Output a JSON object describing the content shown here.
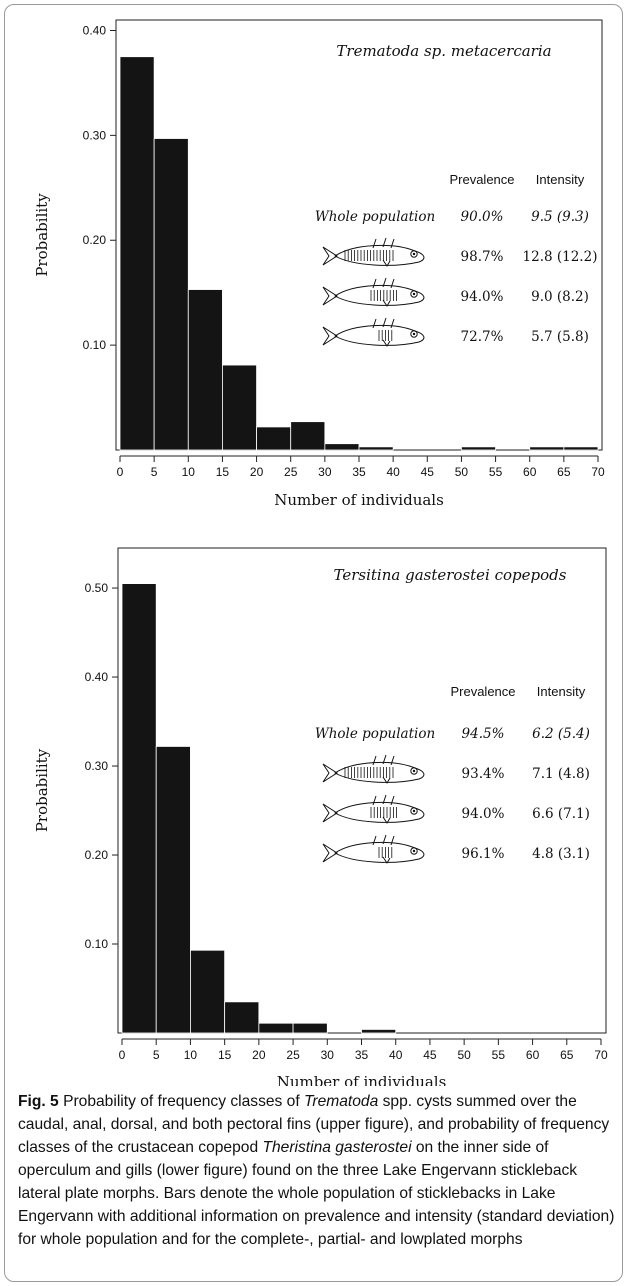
{
  "chart_data": [
    {
      "type": "bar",
      "title": "Trematoda sp. metacercaria",
      "xlabel": "Number of individuals",
      "ylabel": "Probability",
      "x_ticks": [
        "0",
        "5",
        "10",
        "15",
        "20",
        "25",
        "30",
        "35",
        "40",
        "45",
        "50",
        "55",
        "60",
        "65",
        "70"
      ],
      "y_ticks": [
        "0.10",
        "0.20",
        "0.30",
        "0.40"
      ],
      "ylim": [
        0,
        0.41
      ],
      "xlim": [
        0,
        70
      ],
      "bins": [
        [
          0,
          5
        ],
        [
          5,
          10
        ],
        [
          10,
          15
        ],
        [
          15,
          20
        ],
        [
          20,
          25
        ],
        [
          25,
          30
        ],
        [
          30,
          35
        ],
        [
          35,
          40
        ],
        [
          40,
          45
        ],
        [
          45,
          50
        ],
        [
          50,
          55
        ],
        [
          55,
          60
        ],
        [
          60,
          65
        ],
        [
          65,
          70
        ]
      ],
      "values": [
        0.375,
        0.297,
        0.153,
        0.081,
        0.022,
        0.027,
        0.006,
        0.003,
        0,
        0,
        0.003,
        0,
        0.003,
        0.003
      ],
      "table_header": [
        "Prevalence",
        "Intensity"
      ],
      "table_rows": [
        {
          "label": "Whole population",
          "prevalence": "90.0%",
          "intensity": "9.5 (9.3)",
          "icon": "whole-population-label"
        },
        {
          "label": "",
          "prevalence": "98.7%",
          "intensity": "12.8 (12.2)",
          "icon": "complete-plated-stickleback-icon"
        },
        {
          "label": "",
          "prevalence": "94.0%",
          "intensity": "9.0 (8.2)",
          "icon": "partial-plated-stickleback-icon"
        },
        {
          "label": "",
          "prevalence": "72.7%",
          "intensity": "5.7 (5.8)",
          "icon": "low-plated-stickleback-icon"
        }
      ]
    },
    {
      "type": "bar",
      "title": "Tersitina gasterostei copepods",
      "xlabel": "Number of individuals",
      "ylabel": "Probability",
      "x_ticks": [
        "0",
        "5",
        "10",
        "15",
        "20",
        "25",
        "30",
        "35",
        "40",
        "45",
        "50",
        "55",
        "60",
        "65",
        "70"
      ],
      "y_ticks": [
        "0.10",
        "0.20",
        "0.30",
        "0.40",
        "0.50"
      ],
      "ylim": [
        0,
        0.545
      ],
      "xlim": [
        0,
        70
      ],
      "bins": [
        [
          0,
          5
        ],
        [
          5,
          10
        ],
        [
          10,
          15
        ],
        [
          15,
          20
        ],
        [
          20,
          25
        ],
        [
          25,
          30
        ],
        [
          30,
          35
        ],
        [
          35,
          40
        ],
        [
          40,
          45
        ],
        [
          45,
          50
        ],
        [
          50,
          55
        ],
        [
          55,
          60
        ],
        [
          60,
          65
        ],
        [
          65,
          70
        ]
      ],
      "values": [
        0.505,
        0.322,
        0.093,
        0.035,
        0.011,
        0.011,
        0,
        0.004,
        0,
        0,
        0,
        0,
        0,
        0
      ],
      "table_header": [
        "Prevalence",
        "Intensity"
      ],
      "table_rows": [
        {
          "label": "Whole population",
          "prevalence": "94.5%",
          "intensity": "6.2 (5.4)",
          "icon": "whole-population-label"
        },
        {
          "label": "",
          "prevalence": "93.4%",
          "intensity": "7.1 (4.8)",
          "icon": "complete-plated-stickleback-icon"
        },
        {
          "label": "",
          "prevalence": "94.0%",
          "intensity": "6.6 (7.1)",
          "icon": "partial-plated-stickleback-icon"
        },
        {
          "label": "",
          "prevalence": "96.1%",
          "intensity": "4.8 (3.1)",
          "icon": "low-plated-stickleback-icon"
        }
      ]
    }
  ],
  "caption": {
    "label": "Fig. 5",
    "parts": [
      {
        "t": " Probability of frequency classes of ",
        "i": false
      },
      {
        "t": "Trematoda",
        "i": true
      },
      {
        "t": " spp. cysts summed over the caudal, anal, dorsal, and both pectoral fins (upper figure), and probability of frequency classes of the crustacean copepod ",
        "i": false
      },
      {
        "t": "Theristina gasterostei",
        "i": true
      },
      {
        "t": " on the inner side of operculum and gills (lower figure) found on the three Lake Engervann stickleback lateral plate morphs. Bars denote the whole population of sticklebacks in Lake Engervann with additional information on prevalence and intensity (standard deviation) for whole population and for the complete-, partial- and lowplated morphs",
        "i": false
      }
    ]
  },
  "colors": {
    "bar": "#141414",
    "axis": "#222222",
    "border": "#9a9a9a"
  }
}
